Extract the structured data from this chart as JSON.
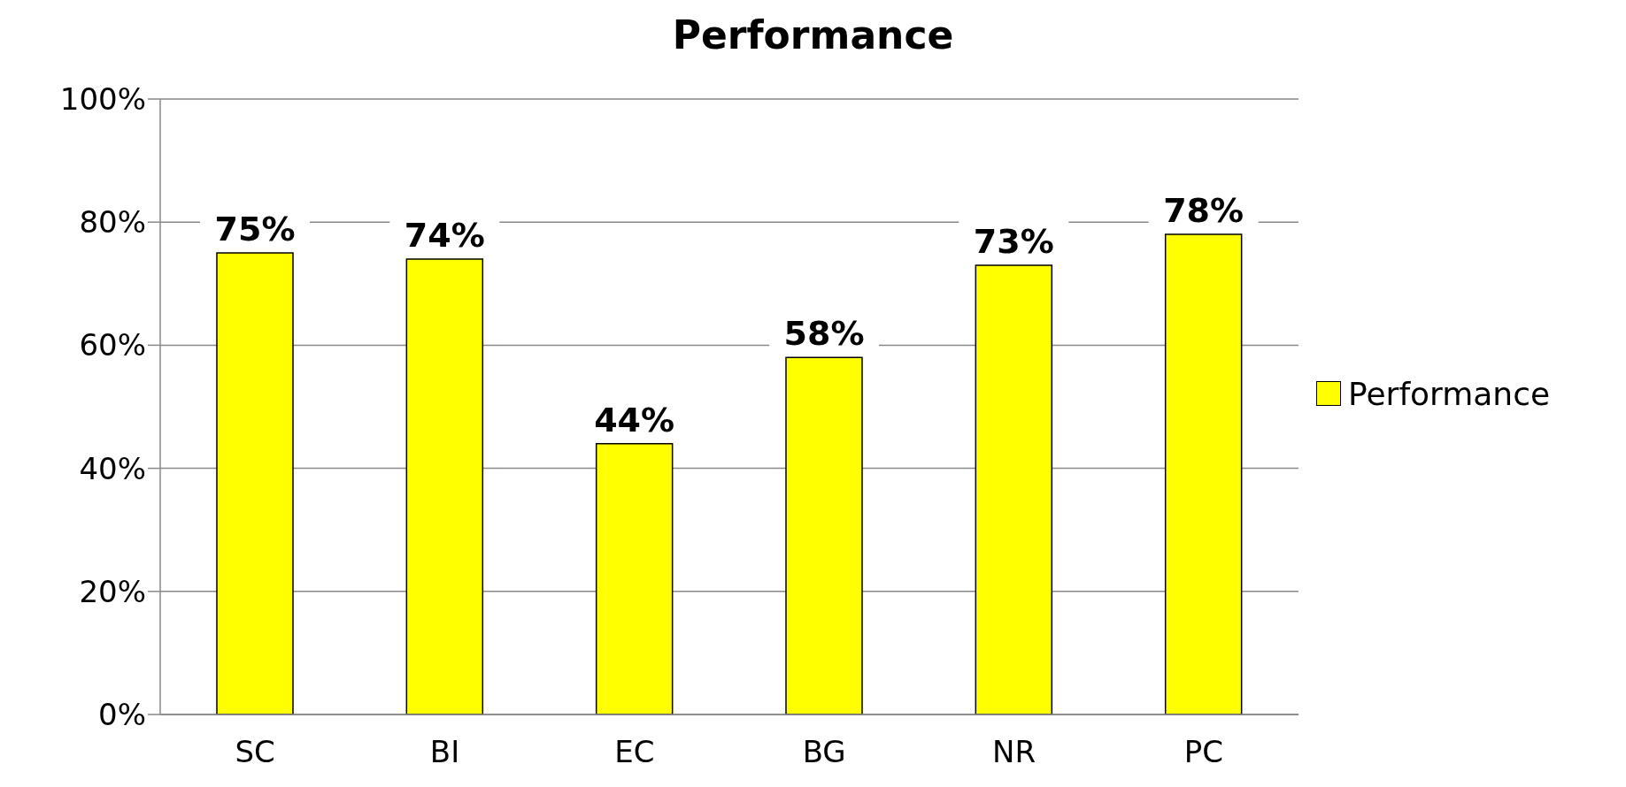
{
  "chart_data": {
    "type": "bar",
    "title": "Performance",
    "categories": [
      "SC",
      "BI",
      "EC",
      "BG",
      "NR",
      "PC"
    ],
    "series": [
      {
        "name": "Performance",
        "color": "#ffff00",
        "values": [
          75,
          74,
          44,
          58,
          73,
          78
        ],
        "value_labels": [
          "75%",
          "74%",
          "44%",
          "58%",
          "73%",
          "78%"
        ]
      }
    ],
    "ylim": [
      0,
      100
    ],
    "yticks": [
      {
        "value": 0,
        "label": "0%"
      },
      {
        "value": 20,
        "label": "20%"
      },
      {
        "value": 40,
        "label": "40%"
      },
      {
        "value": 60,
        "label": "60%"
      },
      {
        "value": 80,
        "label": "80%"
      },
      {
        "value": 100,
        "label": "100%"
      }
    ],
    "grid": "y",
    "legend": "right"
  }
}
